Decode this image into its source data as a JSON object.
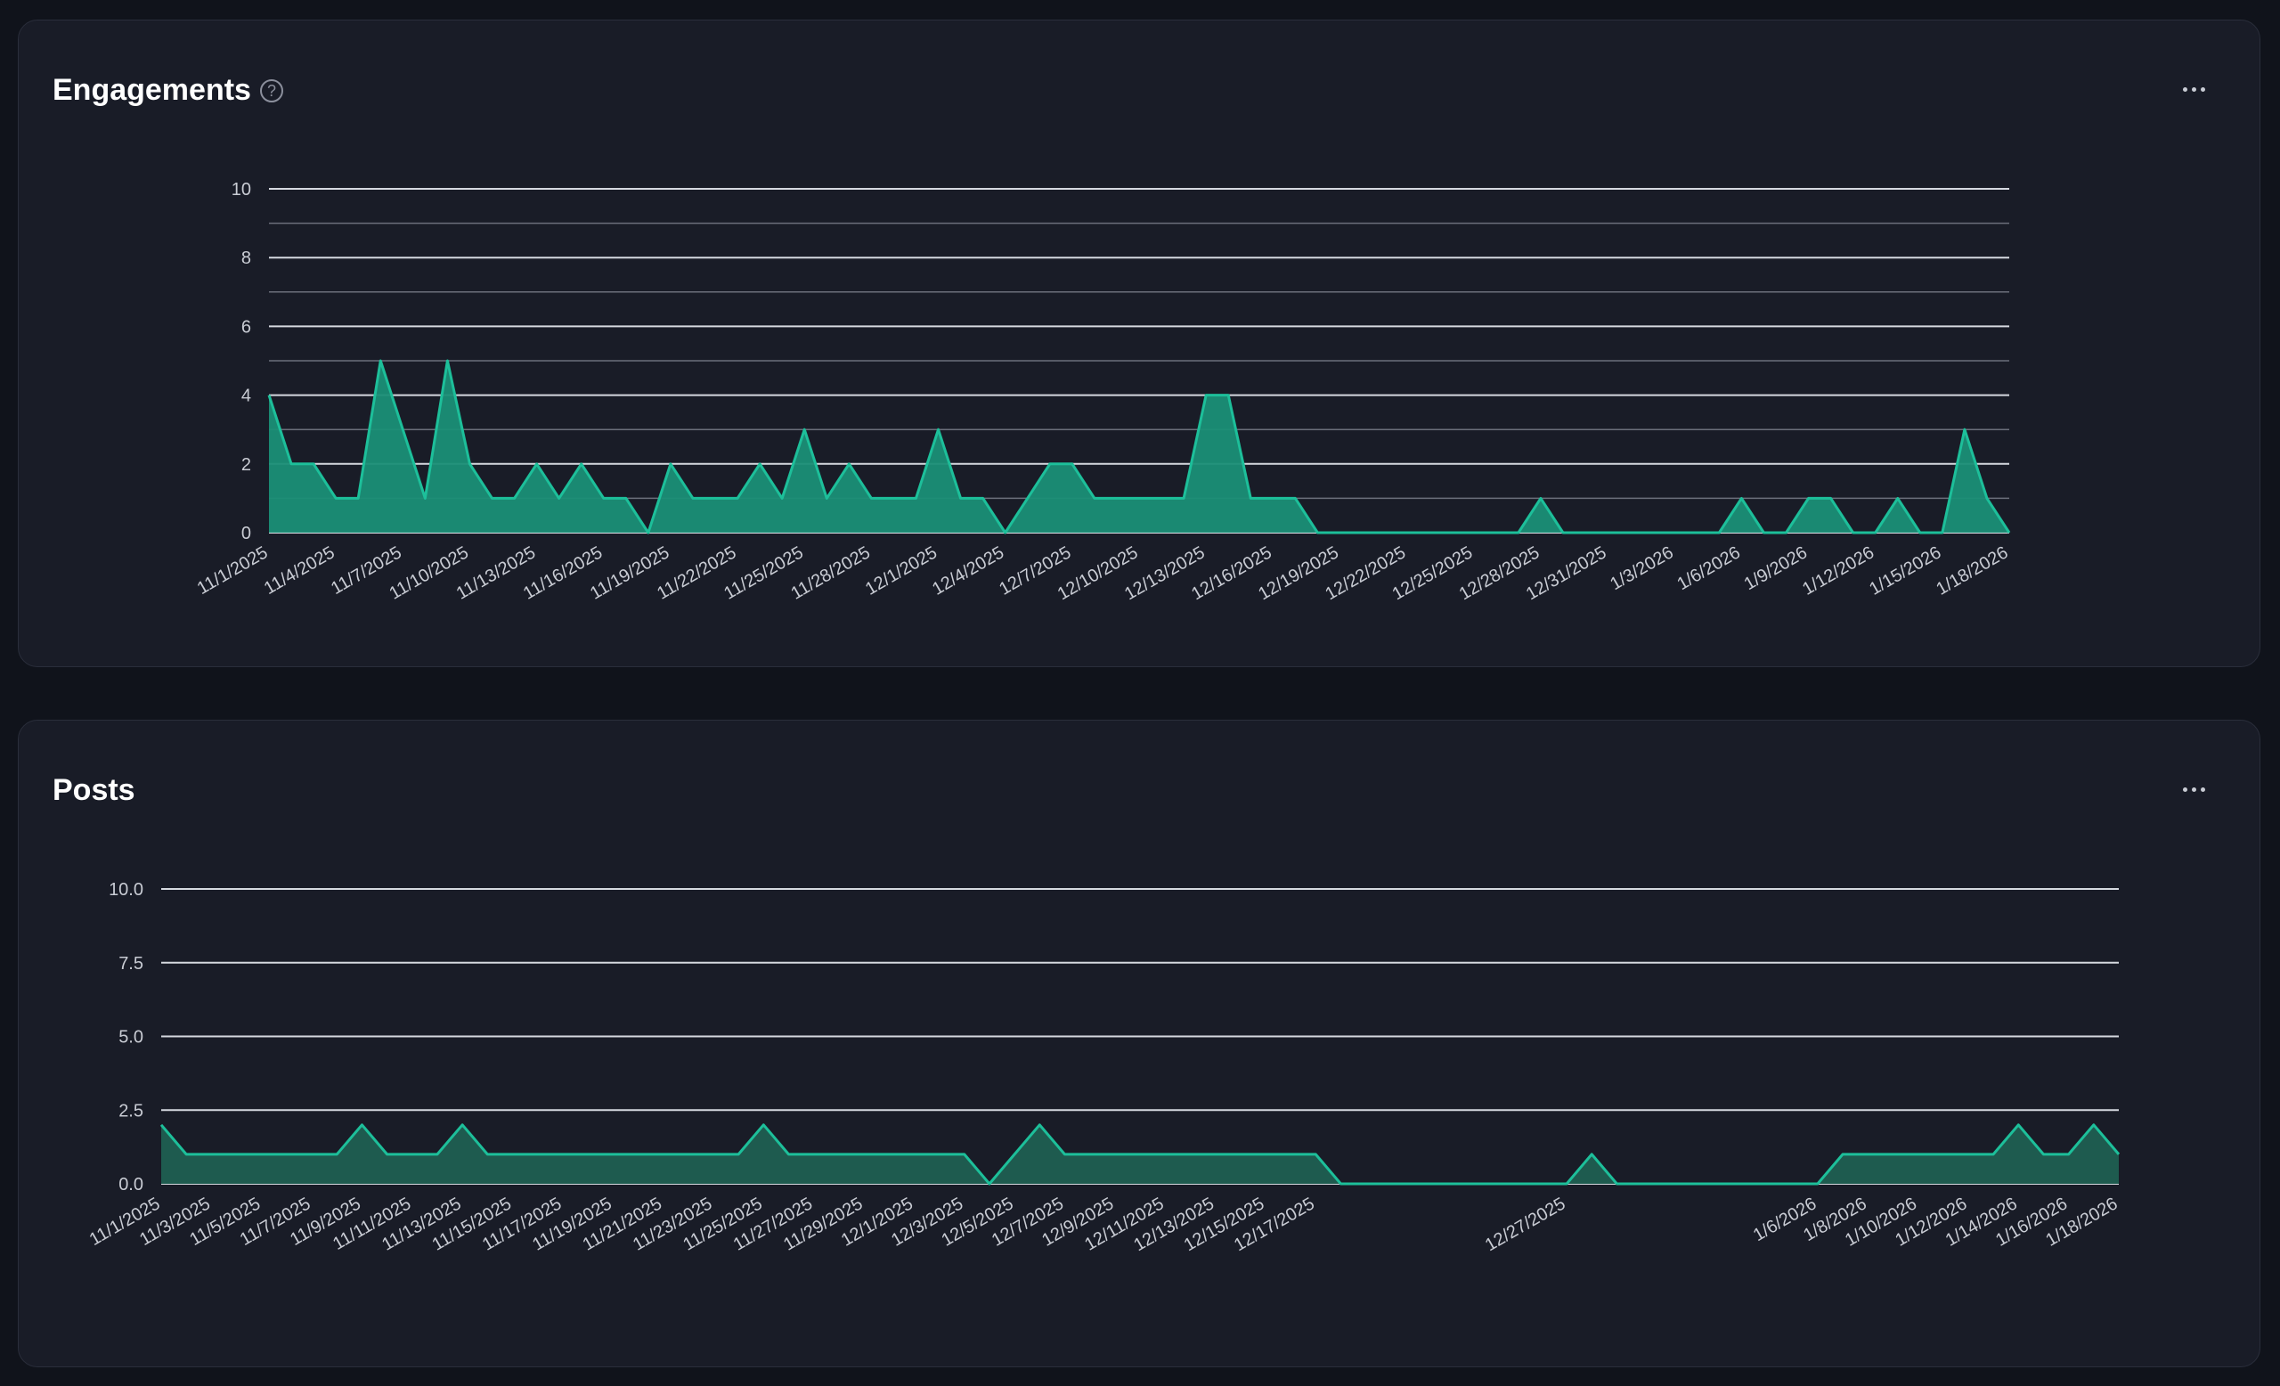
{
  "colors": {
    "accent_line": "#1dbf9a",
    "accent_fill": "#1a8f76",
    "posts_fill": "#1e5b4f",
    "grid": "#d6d9e0",
    "grid_minor": "#6b6f7b"
  },
  "icons": {
    "help": "question-circle-icon",
    "menu": "ellipsis-icon"
  },
  "engagements": {
    "title": "Engagements",
    "help_symbol": "?",
    "menu_label": "more options"
  },
  "posts": {
    "title": "Posts",
    "menu_label": "more options"
  },
  "chart_data": [
    {
      "type": "area",
      "title": "Engagements",
      "xlabel": "",
      "ylabel": "",
      "ylim": [
        0,
        10
      ],
      "y_ticks": [
        "0",
        "2",
        "4",
        "6",
        "8",
        "10"
      ],
      "grid": true,
      "x_tick_labels": [
        "11/1/2025",
        "11/4/2025",
        "11/7/2025",
        "11/10/2025",
        "11/13/2025",
        "11/16/2025",
        "11/19/2025",
        "11/22/2025",
        "11/25/2025",
        "11/28/2025",
        "12/1/2025",
        "12/4/2025",
        "12/7/2025",
        "12/10/2025",
        "12/13/2025",
        "12/16/2025",
        "12/19/2025",
        "12/22/2025",
        "12/25/2025",
        "12/28/2025",
        "12/31/2025",
        "1/3/2026",
        "1/6/2026",
        "1/9/2026",
        "1/12/2026",
        "1/15/2026",
        "1/18/2026"
      ],
      "x": [
        "11/1/2025",
        "11/2/2025",
        "11/3/2025",
        "11/4/2025",
        "11/5/2025",
        "11/6/2025",
        "11/7/2025",
        "11/8/2025",
        "11/9/2025",
        "11/10/2025",
        "11/11/2025",
        "11/12/2025",
        "11/13/2025",
        "11/14/2025",
        "11/15/2025",
        "11/16/2025",
        "11/17/2025",
        "11/18/2025",
        "11/19/2025",
        "11/20/2025",
        "11/21/2025",
        "11/22/2025",
        "11/23/2025",
        "11/24/2025",
        "11/25/2025",
        "11/26/2025",
        "11/27/2025",
        "11/28/2025",
        "11/29/2025",
        "11/30/2025",
        "12/1/2025",
        "12/2/2025",
        "12/3/2025",
        "12/4/2025",
        "12/5/2025",
        "12/6/2025",
        "12/7/2025",
        "12/8/2025",
        "12/9/2025",
        "12/10/2025",
        "12/11/2025",
        "12/12/2025",
        "12/13/2025",
        "12/14/2025",
        "12/15/2025",
        "12/16/2025",
        "12/17/2025",
        "12/18/2025",
        "12/19/2025",
        "12/20/2025",
        "12/21/2025",
        "12/22/2025",
        "12/23/2025",
        "12/24/2025",
        "12/25/2025",
        "12/26/2025",
        "12/27/2025",
        "12/28/2025",
        "12/29/2025",
        "12/30/2025",
        "12/31/2025",
        "1/1/2026",
        "1/2/2026",
        "1/3/2026",
        "1/4/2026",
        "1/5/2026",
        "1/6/2026",
        "1/7/2026",
        "1/8/2026",
        "1/9/2026",
        "1/10/2026",
        "1/11/2026",
        "1/12/2026",
        "1/13/2026",
        "1/14/2026",
        "1/15/2026",
        "1/16/2026",
        "1/17/2026",
        "1/18/2026"
      ],
      "values": [
        4,
        2,
        2,
        1,
        1,
        5,
        3,
        1,
        5,
        2,
        1,
        1,
        2,
        1,
        2,
        1,
        1,
        0,
        2,
        1,
        1,
        1,
        2,
        1,
        3,
        1,
        2,
        1,
        1,
        1,
        3,
        1,
        1,
        0,
        1,
        2,
        2,
        1,
        1,
        1,
        1,
        1,
        4,
        4,
        1,
        1,
        1,
        0,
        0,
        0,
        0,
        0,
        0,
        0,
        0,
        0,
        0,
        1,
        0,
        0,
        0,
        0,
        0,
        0,
        0,
        0,
        1,
        0,
        0,
        1,
        1,
        0,
        0,
        1,
        0,
        0,
        3,
        1,
        0
      ]
    },
    {
      "type": "area",
      "title": "Posts",
      "xlabel": "",
      "ylabel": "",
      "ylim": [
        0,
        10
      ],
      "y_ticks": [
        "0.0",
        "2.5",
        "5.0",
        "7.5",
        "10.0"
      ],
      "grid": true,
      "x_tick_labels": [
        "11/1/2025",
        "11/3/2025",
        "11/5/2025",
        "11/7/2025",
        "11/9/2025",
        "11/11/2025",
        "11/13/2025",
        "11/15/2025",
        "11/17/2025",
        "11/19/2025",
        "11/21/2025",
        "11/23/2025",
        "11/25/2025",
        "11/27/2025",
        "11/29/2025",
        "12/1/2025",
        "12/3/2025",
        "12/5/2025",
        "12/7/2025",
        "12/9/2025",
        "12/11/2025",
        "12/13/2025",
        "12/15/2025",
        "12/17/2025",
        "12/27/2025",
        "1/6/2026",
        "1/8/2026",
        "1/10/2026",
        "1/12/2026",
        "1/14/2026",
        "1/16/2026",
        "1/18/2026"
      ],
      "x": [
        "11/1/2025",
        "11/2/2025",
        "11/3/2025",
        "11/4/2025",
        "11/5/2025",
        "11/6/2025",
        "11/7/2025",
        "11/8/2025",
        "11/9/2025",
        "11/10/2025",
        "11/11/2025",
        "11/12/2025",
        "11/13/2025",
        "11/14/2025",
        "11/15/2025",
        "11/16/2025",
        "11/17/2025",
        "11/18/2025",
        "11/19/2025",
        "11/20/2025",
        "11/21/2025",
        "11/22/2025",
        "11/23/2025",
        "11/24/2025",
        "11/25/2025",
        "11/26/2025",
        "11/27/2025",
        "11/28/2025",
        "11/29/2025",
        "11/30/2025",
        "12/1/2025",
        "12/2/2025",
        "12/3/2025",
        "12/4/2025",
        "12/5/2025",
        "12/6/2025",
        "12/7/2025",
        "12/8/2025",
        "12/9/2025",
        "12/10/2025",
        "12/11/2025",
        "12/12/2025",
        "12/13/2025",
        "12/14/2025",
        "12/15/2025",
        "12/16/2025",
        "12/17/2025",
        "12/18/2025",
        "12/19/2025",
        "12/20/2025",
        "12/21/2025",
        "12/22/2025",
        "12/23/2025",
        "12/24/2025",
        "12/25/2025",
        "12/26/2025",
        "12/27/2025",
        "12/28/2025",
        "12/29/2025",
        "12/30/2025",
        "12/31/2025",
        "1/1/2026",
        "1/2/2026",
        "1/3/2026",
        "1/4/2026",
        "1/5/2026",
        "1/6/2026",
        "1/7/2026",
        "1/8/2026",
        "1/9/2026",
        "1/10/2026",
        "1/11/2026",
        "1/12/2026",
        "1/13/2026",
        "1/14/2026",
        "1/15/2026",
        "1/16/2026",
        "1/17/2026",
        "1/18/2026"
      ],
      "values": [
        2,
        1,
        1,
        1,
        1,
        1,
        1,
        1,
        2,
        1,
        1,
        1,
        2,
        1,
        1,
        1,
        1,
        1,
        1,
        1,
        1,
        1,
        1,
        1,
        2,
        1,
        1,
        1,
        1,
        1,
        1,
        1,
        1,
        0,
        1,
        2,
        1,
        1,
        1,
        1,
        1,
        1,
        1,
        1,
        1,
        1,
        1,
        0,
        0,
        0,
        0,
        0,
        0,
        0,
        0,
        0,
        0,
        1,
        0,
        0,
        0,
        0,
        0,
        0,
        0,
        0,
        0,
        1,
        1,
        1,
        1,
        1,
        1,
        1,
        2,
        1,
        1,
        2,
        1
      ]
    }
  ]
}
